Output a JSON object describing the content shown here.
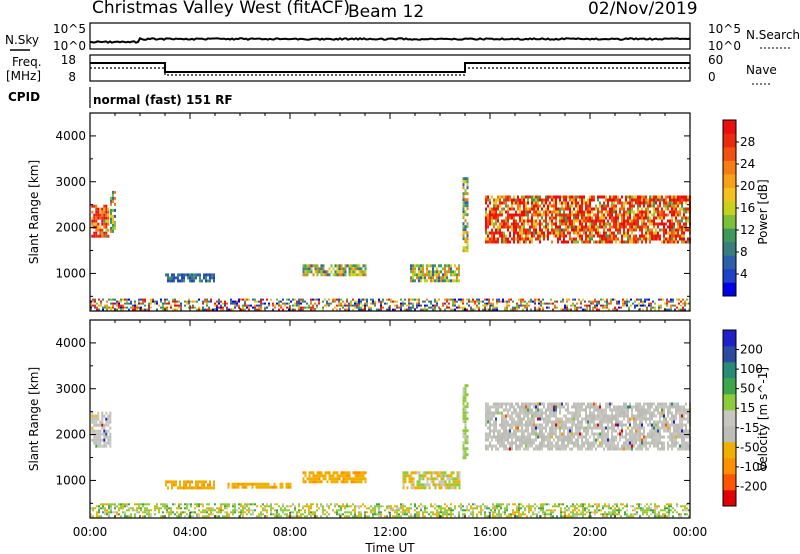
{
  "header": {
    "station": "Christmas Valley West (fitACF)",
    "beam": "Beam 12",
    "date": "02/Nov/2019"
  },
  "top_panels": {
    "nsky_label": "N.Sky",
    "nsearch_label": "N.Search",
    "noise_ticks": [
      "10^5",
      "10^0"
    ],
    "freq_label_1": "Freq.",
    "freq_label_2": "[MHz]",
    "freq_ticks": [
      "18",
      "8"
    ],
    "nave_label": "Nave",
    "nave_ticks": [
      "60",
      "0"
    ],
    "cpid_label": "CPID",
    "cpid_text": "normal (fast) 151 RF"
  },
  "x_axis": {
    "label": "Time UT",
    "ticks": [
      "00:00",
      "04:00",
      "08:00",
      "12:00",
      "16:00",
      "20:00",
      "00:00"
    ]
  },
  "colors": {
    "power": [
      "#0000e6",
      "#2040c8",
      "#2f5fa8",
      "#3a7d7e",
      "#3f9a5a",
      "#7cbf3a",
      "#c8d21e",
      "#f4c21e",
      "#f7a11a",
      "#f57d13",
      "#f2520f",
      "#ea2a0c",
      "#e80e0e"
    ],
    "velocity": [
      "#e00000",
      "#ff5500",
      "#ff9000",
      "#f0b000",
      "#bdbdb7",
      "#c7c7c0",
      "#8ecb3c",
      "#3ea64a",
      "#2a8a78",
      "#2b4aa0",
      "#2020c8"
    ]
  },
  "chart_data": [
    {
      "type": "heatmap",
      "quantity": "Power",
      "ylabel": "Slant Range [km]",
      "ylim": [
        180,
        4500
      ],
      "xlim_hours": [
        0,
        24
      ],
      "yticks": [
        1000,
        2000,
        3000,
        4000
      ],
      "colorbar": {
        "label": "Power [dB]",
        "ticks": [
          4,
          8,
          12,
          16,
          20,
          24,
          28
        ],
        "range": [
          0,
          32
        ]
      },
      "regions": [
        {
          "t0": 0.05,
          "t1": 0.7,
          "r0": 1800,
          "r1": 2500,
          "level": "high"
        },
        {
          "t0": 0.8,
          "t1": 1.0,
          "r0": 1900,
          "r1": 2800,
          "level": "mid"
        },
        {
          "t0": 3.0,
          "t1": 5.0,
          "r0": 850,
          "r1": 1000,
          "level": "low"
        },
        {
          "t0": 8.5,
          "t1": 11.0,
          "r0": 1000,
          "r1": 1200,
          "level": "mid"
        },
        {
          "t0": 12.8,
          "t1": 14.8,
          "r0": 850,
          "r1": 1200,
          "level": "mid"
        },
        {
          "t0": 14.9,
          "t1": 15.1,
          "r0": 1500,
          "r1": 3100,
          "level": "mid"
        },
        {
          "t0": 15.8,
          "t1": 24.0,
          "r0": 1700,
          "r1": 2700,
          "level": "high"
        },
        {
          "t0": 0.0,
          "t1": 24.0,
          "r0": 200,
          "r1": 450,
          "level": "ground"
        }
      ]
    },
    {
      "type": "heatmap",
      "quantity": "Velocity",
      "ylabel": "Slant Range [km]",
      "ylim": [
        180,
        4500
      ],
      "xlim_hours": [
        0,
        24
      ],
      "yticks": [
        1000,
        2000,
        3000,
        4000
      ],
      "colorbar": {
        "label": "Velocity [m s^-1]",
        "ticks": [
          -200,
          -100,
          -50,
          -15,
          15,
          50,
          100,
          200
        ],
        "range": [
          -250,
          250
        ]
      },
      "regions": [
        {
          "t0": 0.05,
          "t1": 0.8,
          "r0": 1750,
          "r1": 2500,
          "level": "gray"
        },
        {
          "t0": 3.0,
          "t1": 5.0,
          "r0": 850,
          "r1": 1000,
          "level": "orange"
        },
        {
          "t0": 5.5,
          "t1": 8.0,
          "r0": 850,
          "r1": 950,
          "level": "orange"
        },
        {
          "t0": 8.5,
          "t1": 11.0,
          "r0": 1000,
          "r1": 1200,
          "level": "orange"
        },
        {
          "t0": 12.5,
          "t1": 14.8,
          "r0": 850,
          "r1": 1200,
          "level": "mixed"
        },
        {
          "t0": 14.9,
          "t1": 15.1,
          "r0": 1500,
          "r1": 3100,
          "level": "green"
        },
        {
          "t0": 15.8,
          "t1": 24.0,
          "r0": 1700,
          "r1": 2700,
          "level": "gray"
        },
        {
          "t0": 0.0,
          "t1": 24.0,
          "r0": 200,
          "r1": 500,
          "level": "ground"
        }
      ]
    }
  ]
}
